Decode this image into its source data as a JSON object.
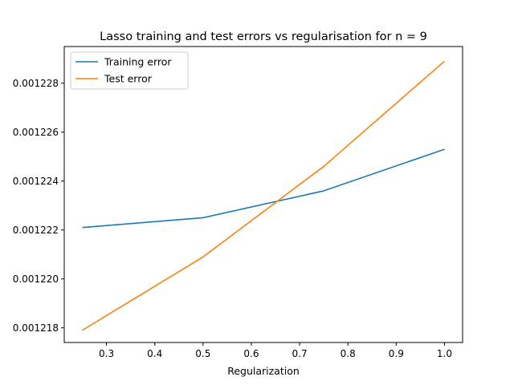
{
  "chart_data": {
    "type": "line",
    "title": "Lasso training and test errors vs regularisation for n = 9",
    "xlabel": "Regularization",
    "ylabel": "",
    "x": [
      0.25,
      0.5,
      0.75,
      1.0
    ],
    "xlim": [
      0.2125,
      1.0375
    ],
    "ylim": [
      0.0012174,
      0.0012295
    ],
    "xticks": [
      0.3,
      0.4,
      0.5,
      0.6,
      0.7,
      0.8,
      0.9,
      1.0
    ],
    "xtick_labels": [
      "0.3",
      "0.4",
      "0.5",
      "0.6",
      "0.7",
      "0.8",
      "0.9",
      "1.0"
    ],
    "yticks": [
      0.001218,
      0.00122,
      0.001222,
      0.001224,
      0.001226,
      0.001228
    ],
    "ytick_labels": [
      "0.001218",
      "0.001220",
      "0.001222",
      "0.001224",
      "0.001226",
      "0.001228"
    ],
    "grid": false,
    "legend_position": "upper-left",
    "series": [
      {
        "name": "Training error",
        "color": "#1f77b4",
        "values": [
          0.0012221,
          0.0012225,
          0.0012236,
          0.0012253
        ]
      },
      {
        "name": "Test error",
        "color": "#ff7f0e",
        "values": [
          0.0012179,
          0.0012209,
          0.0012246,
          0.0012289
        ]
      }
    ]
  }
}
